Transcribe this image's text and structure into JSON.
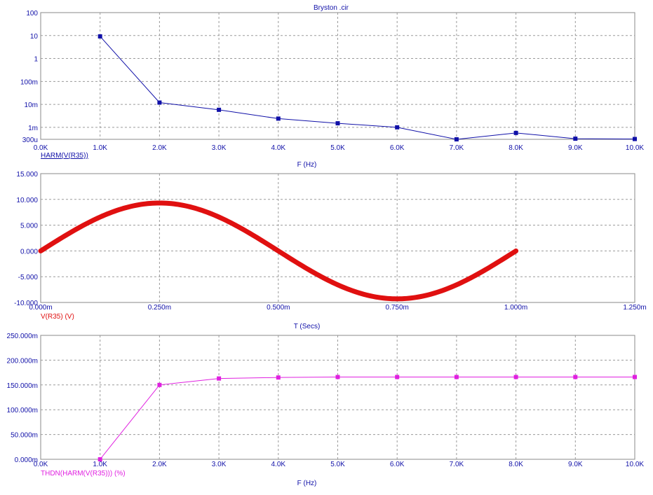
{
  "window_title": "Bryston .cir",
  "chart_data": [
    {
      "type": "line",
      "yscale": "log",
      "ylim": [
        0.0003,
        100
      ],
      "xlim": [
        0,
        10000
      ],
      "grid": true,
      "y_tick_values": [
        100,
        10,
        1,
        0.1,
        0.01,
        0.001,
        0.0003
      ],
      "y_tick_labels": [
        "100",
        "10",
        "1",
        "100m",
        "10m",
        "1m",
        "300u"
      ],
      "x_tick_values": [
        0,
        1000,
        2000,
        3000,
        4000,
        5000,
        6000,
        7000,
        8000,
        9000,
        10000
      ],
      "x_tick_labels": [
        "0.0K",
        "1.0K",
        "2.0K",
        "3.0K",
        "4.0K",
        "5.0K",
        "6.0K",
        "7.0K",
        "8.0K",
        "9.0K",
        "10.0K"
      ],
      "xlabel": "F (Hz)",
      "series": [
        {
          "name": "HARM(V(R35))",
          "color": "#1010a8",
          "marker": "square",
          "x": [
            1000,
            2000,
            3000,
            4000,
            5000,
            6000,
            7000,
            8000,
            9000,
            10000
          ],
          "y": [
            9.2,
            0.012,
            0.0058,
            0.0024,
            0.0015,
            0.001,
            0.0003,
            0.00057,
            0.00032,
            0.00031
          ]
        }
      ]
    },
    {
      "type": "line",
      "ylim": [
        -10,
        15
      ],
      "xlim": [
        0,
        1.25
      ],
      "grid": true,
      "y_tick_values": [
        15,
        10,
        5,
        0,
        -5,
        -10
      ],
      "y_tick_labels": [
        "15.000",
        "10.000",
        "5.000",
        "0.000",
        "-5.000",
        "-10.000"
      ],
      "x_tick_values": [
        0,
        0.25,
        0.5,
        0.75,
        1.0,
        1.25
      ],
      "x_tick_labels": [
        "0.000m",
        "0.250m",
        "0.500m",
        "0.750m",
        "1.000m",
        "1.250m"
      ],
      "xlabel": "T (Secs)",
      "series": [
        {
          "name": "V(R35) (V)",
          "color": "#e01010",
          "function": "sine",
          "amplitude": 9.3,
          "period_ms": 1.0,
          "x_range": [
            0,
            1.0
          ]
        }
      ]
    },
    {
      "type": "line",
      "ylim": [
        0,
        250
      ],
      "xlim": [
        0,
        10000
      ],
      "grid": true,
      "y_tick_values": [
        250,
        200,
        150,
        100,
        50,
        0
      ],
      "y_tick_labels": [
        "250.000m",
        "200.000m",
        "150.000m",
        "100.000m",
        "50.000m",
        "0.000m"
      ],
      "x_tick_values": [
        0,
        1000,
        2000,
        3000,
        4000,
        5000,
        6000,
        7000,
        8000,
        9000,
        10000
      ],
      "x_tick_labels": [
        "0.0K",
        "1.0K",
        "2.0K",
        "3.0K",
        "4.0K",
        "5.0K",
        "6.0K",
        "7.0K",
        "8.0K",
        "9.0K",
        "10.0K"
      ],
      "xlabel": "F (Hz)",
      "series": [
        {
          "name": "THDN(HARM(V(R35))) (%)",
          "color": "#e020e0",
          "marker": "square",
          "x": [
            1000,
            2000,
            3000,
            4000,
            5000,
            6000,
            7000,
            8000,
            9000,
            10000
          ],
          "y": [
            0,
            150,
            163,
            165,
            166,
            166,
            166,
            166,
            166,
            166
          ]
        }
      ]
    }
  ]
}
